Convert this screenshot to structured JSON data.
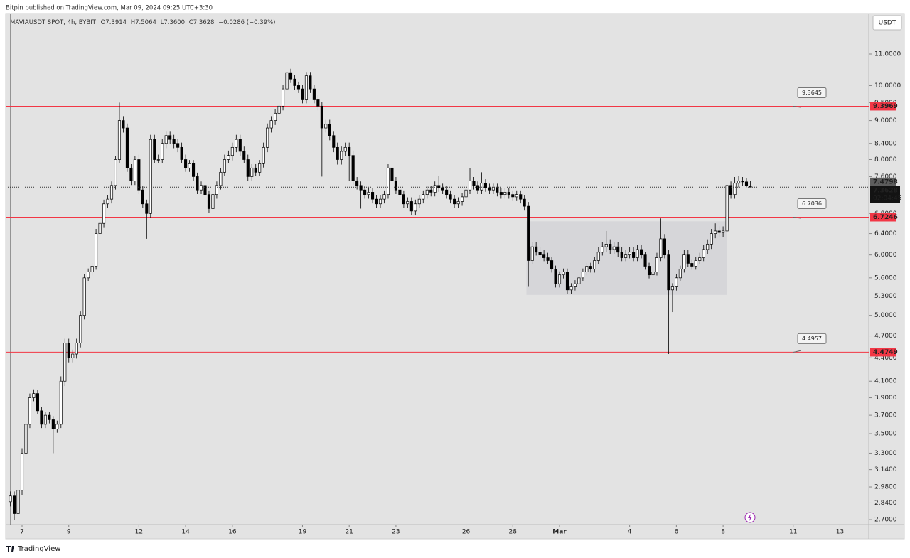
{
  "header": {
    "publisher": "Bitpin published on TradingView.com, Mar 09, 2024 09:25 UTC+3:30"
  },
  "chart_data": {
    "type": "candlestick",
    "symbol": "MAVIAUSDT SPOT, 4h, BYBIT",
    "ohlc_legend": [
      "O7.3914",
      "H7.5064",
      "L7.3600",
      "C7.3628",
      "−0.0286 (−0.39%)"
    ],
    "currency": "USDT",
    "log_scale": true,
    "up_color": "#ffffff",
    "down_color": "#000000",
    "xlim": [
      -4.2,
      217.4
    ],
    "xticks": [
      {
        "value": 0,
        "label": "7"
      },
      {
        "value": 12,
        "label": "9"
      },
      {
        "value": 30,
        "label": "12"
      },
      {
        "value": 42,
        "label": "14"
      },
      {
        "value": 54,
        "label": "16"
      },
      {
        "value": 72,
        "label": "19"
      },
      {
        "value": 84,
        "label": "21"
      },
      {
        "value": 96,
        "label": "23"
      },
      {
        "value": 114,
        "label": "26"
      },
      {
        "value": 126,
        "label": "28"
      },
      {
        "value": 138,
        "label": "Mar"
      },
      {
        "value": 156,
        "label": "4"
      },
      {
        "value": 168,
        "label": "6"
      },
      {
        "value": 180,
        "label": "8"
      },
      {
        "value": 198,
        "label": "11"
      },
      {
        "value": 210,
        "label": "13"
      }
    ],
    "ylim": [
      2.66,
      12.43
    ],
    "yticks": [
      {
        "value": 11,
        "label": "11.0000"
      },
      {
        "value": 10,
        "label": "10.0000"
      },
      {
        "value": 9.5,
        "label": "9.5000"
      },
      {
        "value": 9,
        "label": "9.0000"
      },
      {
        "value": 8.4,
        "label": "8.4000"
      },
      {
        "value": 8,
        "label": "8.0000"
      },
      {
        "value": 7.6,
        "label": "7.6000"
      },
      {
        "value": 6.8,
        "label": "6.8000"
      },
      {
        "value": 6.4,
        "label": "6.4000"
      },
      {
        "value": 6,
        "label": "6.0000"
      },
      {
        "value": 5.6,
        "label": "5.6000"
      },
      {
        "value": 5.3,
        "label": "5.3000"
      },
      {
        "value": 5,
        "label": "5.0000"
      },
      {
        "value": 4.7,
        "label": "4.7000"
      },
      {
        "value": 4.4,
        "label": "4.4000"
      },
      {
        "value": 4.1,
        "label": "4.1000"
      },
      {
        "value": 3.9,
        "label": "3.9000"
      },
      {
        "value": 3.7,
        "label": "3.7000"
      },
      {
        "value": 3.5,
        "label": "3.5000"
      },
      {
        "value": 3.3,
        "label": "3.3000"
      },
      {
        "value": 3.14,
        "label": "3.1400"
      },
      {
        "value": 2.98,
        "label": "2.9800"
      },
      {
        "value": 2.84,
        "label": "2.8400"
      },
      {
        "value": 2.7,
        "label": "2.7000"
      }
    ],
    "levels": [
      {
        "value": 9.3969,
        "callout": 9.3645
      },
      {
        "value": 6.7246,
        "callout": 6.7036
      },
      {
        "value": 4.4749,
        "callout": 4.4957
      }
    ],
    "level_color": "#f23645",
    "marker_price": 7.4798,
    "last_price": 7.3628,
    "countdown": "02:04:45",
    "box": {
      "x": [
        129.5,
        181
      ],
      "y": [
        5.32,
        6.64
      ]
    },
    "x": [
      -3,
      -2,
      -1,
      0,
      1,
      2,
      3,
      4,
      5,
      6,
      7,
      8,
      9,
      10,
      11,
      12,
      13,
      14,
      15,
      16,
      17,
      18,
      19,
      20,
      21,
      22,
      23,
      24,
      25,
      26,
      27,
      28,
      29,
      30,
      31,
      32,
      33,
      34,
      35,
      36,
      37,
      38,
      39,
      40,
      41,
      42,
      43,
      44,
      45,
      46,
      47,
      48,
      49,
      50,
      51,
      52,
      53,
      54,
      55,
      56,
      57,
      58,
      59,
      60,
      61,
      62,
      63,
      64,
      65,
      66,
      67,
      68,
      69,
      70,
      71,
      72,
      73,
      74,
      75,
      76,
      77,
      78,
      79,
      80,
      81,
      82,
      83,
      84,
      85,
      86,
      87,
      88,
      89,
      90,
      91,
      92,
      93,
      94,
      95,
      96,
      97,
      98,
      99,
      100,
      101,
      102,
      103,
      104,
      105,
      106,
      107,
      108,
      109,
      110,
      111,
      112,
      113,
      114,
      115,
      116,
      117,
      118,
      119,
      120,
      121,
      122,
      123,
      124,
      125,
      126,
      127,
      128,
      129,
      130,
      131,
      132,
      133,
      134,
      135,
      136,
      137,
      138,
      139,
      140,
      141,
      142,
      143,
      144,
      145,
      146,
      147,
      148,
      149,
      150,
      151,
      152,
      153,
      154,
      155,
      156,
      157,
      158,
      159,
      160,
      161,
      162,
      163,
      164,
      165,
      166,
      167,
      168,
      169,
      170,
      171,
      172,
      173,
      174,
      175,
      176,
      177,
      178,
      179,
      180,
      181,
      182,
      183,
      184,
      185,
      186,
      187
    ],
    "ohlc": [
      [
        2.85,
        2.94,
        2.81,
        2.9
      ],
      [
        2.9,
        2.94,
        2.7,
        2.75
      ],
      [
        2.75,
        3.0,
        2.72,
        2.95
      ],
      [
        2.95,
        3.35,
        2.91,
        3.3
      ],
      [
        3.3,
        3.65,
        3.26,
        3.6
      ],
      [
        3.6,
        3.95,
        3.56,
        3.9
      ],
      [
        3.9,
        4.0,
        3.86,
        3.95
      ],
      [
        3.95,
        3.99,
        3.71,
        3.75
      ],
      [
        3.75,
        3.79,
        3.56,
        3.6
      ],
      [
        3.6,
        3.74,
        3.56,
        3.7
      ],
      [
        3.7,
        3.74,
        3.61,
        3.65
      ],
      [
        3.65,
        3.69,
        3.3,
        3.55
      ],
      [
        3.55,
        3.64,
        3.51,
        3.6
      ],
      [
        3.6,
        4.16,
        3.56,
        4.1
      ],
      [
        4.1,
        4.66,
        4.04,
        4.6
      ],
      [
        4.6,
        4.66,
        4.34,
        4.4
      ],
      [
        4.4,
        4.51,
        4.34,
        4.45
      ],
      [
        4.45,
        4.66,
        4.39,
        4.6
      ],
      [
        4.6,
        5.06,
        4.54,
        5.0
      ],
      [
        5.0,
        5.66,
        4.94,
        5.6
      ],
      [
        5.6,
        5.76,
        5.54,
        5.7
      ],
      [
        5.7,
        5.86,
        5.64,
        5.8
      ],
      [
        5.8,
        6.49,
        5.74,
        6.4
      ],
      [
        6.4,
        6.69,
        6.31,
        6.6
      ],
      [
        6.6,
        7.09,
        6.51,
        7.0
      ],
      [
        7.0,
        7.19,
        6.91,
        7.1
      ],
      [
        7.1,
        7.49,
        7.01,
        7.4
      ],
      [
        7.4,
        8.09,
        7.31,
        8.0
      ],
      [
        8.0,
        9.5,
        7.91,
        9.0
      ],
      [
        9.0,
        9.12,
        8.68,
        8.8
      ],
      [
        8.8,
        8.92,
        7.71,
        7.8
      ],
      [
        7.8,
        7.89,
        7.41,
        7.5
      ],
      [
        7.5,
        8.09,
        7.41,
        8.0
      ],
      [
        8.0,
        8.12,
        7.21,
        7.3
      ],
      [
        7.3,
        7.39,
        6.91,
        7.0
      ],
      [
        7.0,
        7.09,
        6.3,
        6.8
      ],
      [
        6.8,
        8.62,
        6.71,
        8.5
      ],
      [
        8.5,
        8.62,
        7.91,
        8.0
      ],
      [
        8.0,
        8.12,
        7.91,
        8.0
      ],
      [
        8.0,
        8.52,
        7.91,
        8.4
      ],
      [
        8.4,
        8.72,
        8.28,
        8.6
      ],
      [
        8.6,
        8.72,
        8.38,
        8.5
      ],
      [
        8.5,
        8.62,
        8.28,
        8.4
      ],
      [
        8.4,
        8.52,
        8.18,
        8.3
      ],
      [
        8.3,
        8.42,
        7.91,
        8.0
      ],
      [
        8.0,
        8.12,
        7.71,
        7.8
      ],
      [
        7.8,
        7.99,
        7.71,
        7.9
      ],
      [
        7.9,
        7.99,
        7.51,
        7.6
      ],
      [
        7.6,
        7.69,
        7.21,
        7.3
      ],
      [
        7.3,
        7.49,
        7.21,
        7.4
      ],
      [
        7.4,
        7.49,
        7.11,
        7.2
      ],
      [
        7.2,
        7.29,
        6.81,
        6.9
      ],
      [
        6.9,
        7.29,
        6.81,
        7.2
      ],
      [
        7.2,
        7.49,
        7.11,
        7.4
      ],
      [
        7.4,
        7.79,
        7.31,
        7.7
      ],
      [
        7.7,
        8.12,
        7.61,
        8.0
      ],
      [
        8.0,
        8.22,
        7.91,
        8.1
      ],
      [
        8.1,
        8.42,
        7.98,
        8.3
      ],
      [
        8.3,
        8.62,
        8.18,
        8.5
      ],
      [
        8.5,
        8.62,
        8.08,
        8.2
      ],
      [
        8.2,
        8.32,
        7.91,
        8.0
      ],
      [
        8.0,
        8.12,
        7.51,
        7.6
      ],
      [
        7.6,
        7.89,
        7.51,
        7.8
      ],
      [
        7.8,
        7.89,
        7.61,
        7.7
      ],
      [
        7.7,
        7.99,
        7.61,
        7.9
      ],
      [
        7.9,
        8.42,
        7.81,
        8.3
      ],
      [
        8.3,
        8.92,
        8.18,
        8.8
      ],
      [
        8.8,
        9.12,
        8.68,
        9.0
      ],
      [
        9.0,
        9.32,
        8.88,
        9.2
      ],
      [
        9.2,
        9.52,
        9.08,
        9.4
      ],
      [
        9.4,
        10.02,
        9.28,
        9.9
      ],
      [
        9.9,
        10.8,
        9.78,
        10.4
      ],
      [
        10.4,
        10.52,
        10.08,
        10.2
      ],
      [
        10.2,
        10.32,
        9.88,
        10.0
      ],
      [
        10.0,
        10.12,
        9.78,
        9.9
      ],
      [
        9.9,
        10.02,
        9.48,
        9.6
      ],
      [
        9.6,
        10.42,
        9.48,
        10.3
      ],
      [
        10.3,
        10.42,
        9.78,
        9.9
      ],
      [
        9.9,
        10.02,
        9.48,
        9.6
      ],
      [
        9.6,
        9.72,
        9.28,
        9.4
      ],
      [
        9.4,
        9.52,
        7.6,
        8.8
      ],
      [
        8.8,
        9.02,
        8.68,
        8.9
      ],
      [
        8.9,
        9.02,
        8.48,
        8.6
      ],
      [
        8.6,
        8.72,
        8.18,
        8.3
      ],
      [
        8.3,
        8.42,
        7.88,
        8.0
      ],
      [
        8.0,
        8.32,
        7.88,
        8.2
      ],
      [
        8.2,
        8.42,
        8.08,
        8.3
      ],
      [
        8.3,
        8.42,
        7.5,
        8.1
      ],
      [
        8.1,
        8.22,
        7.41,
        7.5
      ],
      [
        7.5,
        7.59,
        7.31,
        7.4
      ],
      [
        7.4,
        7.49,
        6.9,
        7.3
      ],
      [
        7.3,
        7.39,
        7.11,
        7.2
      ],
      [
        7.2,
        7.34,
        7.11,
        7.25
      ],
      [
        7.25,
        7.34,
        7.01,
        7.1
      ],
      [
        7.1,
        7.19,
        6.91,
        7.0
      ],
      [
        7.0,
        7.19,
        6.91,
        7.1
      ],
      [
        7.1,
        7.29,
        7.01,
        7.2
      ],
      [
        7.2,
        7.89,
        7.11,
        7.8
      ],
      [
        7.8,
        7.89,
        7.41,
        7.5
      ],
      [
        7.5,
        7.59,
        7.21,
        7.3
      ],
      [
        7.3,
        7.39,
        7.11,
        7.2
      ],
      [
        7.2,
        7.29,
        6.91,
        7.0
      ],
      [
        7.0,
        7.14,
        6.91,
        7.05
      ],
      [
        7.05,
        7.14,
        6.76,
        6.85
      ],
      [
        6.85,
        7.09,
        6.76,
        7.0
      ],
      [
        7.0,
        7.19,
        6.91,
        7.1
      ],
      [
        7.1,
        7.29,
        7.01,
        7.2
      ],
      [
        7.2,
        7.39,
        7.11,
        7.3
      ],
      [
        7.3,
        7.39,
        7.16,
        7.25
      ],
      [
        7.25,
        7.49,
        7.16,
        7.4
      ],
      [
        7.4,
        7.62,
        7.26,
        7.35
      ],
      [
        7.35,
        7.44,
        7.21,
        7.3
      ],
      [
        7.3,
        7.39,
        7.11,
        7.2
      ],
      [
        7.2,
        7.29,
        7.01,
        7.1
      ],
      [
        7.1,
        7.19,
        6.91,
        7.0
      ],
      [
        7.0,
        7.14,
        6.91,
        7.05
      ],
      [
        7.05,
        7.24,
        6.96,
        7.15
      ],
      [
        7.15,
        7.39,
        7.06,
        7.3
      ],
      [
        7.3,
        7.8,
        7.21,
        7.5
      ],
      [
        7.5,
        7.59,
        7.31,
        7.4
      ],
      [
        7.4,
        7.49,
        7.21,
        7.3
      ],
      [
        7.3,
        7.7,
        7.21,
        7.45
      ],
      [
        7.45,
        7.54,
        7.26,
        7.35
      ],
      [
        7.35,
        7.44,
        7.21,
        7.3
      ],
      [
        7.3,
        7.44,
        7.21,
        7.35
      ],
      [
        7.35,
        7.44,
        7.16,
        7.25
      ],
      [
        7.25,
        7.34,
        7.11,
        7.2
      ],
      [
        7.2,
        7.34,
        7.11,
        7.25
      ],
      [
        7.25,
        7.34,
        7.11,
        7.2
      ],
      [
        7.2,
        7.29,
        7.06,
        7.15
      ],
      [
        7.15,
        7.29,
        7.06,
        7.2
      ],
      [
        7.2,
        7.29,
        7.01,
        7.1
      ],
      [
        7.1,
        7.19,
        6.86,
        6.95
      ],
      [
        6.95,
        7.04,
        5.45,
        5.9
      ],
      [
        5.9,
        6.24,
        5.84,
        6.15
      ],
      [
        6.15,
        6.24,
        5.99,
        6.05
      ],
      [
        6.05,
        6.14,
        5.94,
        6.0
      ],
      [
        6.0,
        6.09,
        5.89,
        5.95
      ],
      [
        5.95,
        6.04,
        5.84,
        5.9
      ],
      [
        5.9,
        5.96,
        5.69,
        5.75
      ],
      [
        5.75,
        5.81,
        5.44,
        5.5
      ],
      [
        5.5,
        5.71,
        5.44,
        5.65
      ],
      [
        5.65,
        5.76,
        5.59,
        5.7
      ],
      [
        5.7,
        5.76,
        5.34,
        5.4
      ],
      [
        5.4,
        5.51,
        5.34,
        5.45
      ],
      [
        5.45,
        5.56,
        5.39,
        5.5
      ],
      [
        5.5,
        5.66,
        5.44,
        5.6
      ],
      [
        5.6,
        5.76,
        5.54,
        5.7
      ],
      [
        5.7,
        5.86,
        5.64,
        5.8
      ],
      [
        5.8,
        5.86,
        5.69,
        5.75
      ],
      [
        5.75,
        5.96,
        5.69,
        5.9
      ],
      [
        5.9,
        6.14,
        5.84,
        6.05
      ],
      [
        6.05,
        6.24,
        5.99,
        6.15
      ],
      [
        6.15,
        6.45,
        6.06,
        6.2
      ],
      [
        6.2,
        6.29,
        6.01,
        6.1
      ],
      [
        6.1,
        6.24,
        6.01,
        6.15
      ],
      [
        6.15,
        6.24,
        5.96,
        6.05
      ],
      [
        6.05,
        6.14,
        5.89,
        5.95
      ],
      [
        5.95,
        6.09,
        5.89,
        6.0
      ],
      [
        6.0,
        6.14,
        5.94,
        6.05
      ],
      [
        6.05,
        6.14,
        5.89,
        5.95
      ],
      [
        5.95,
        6.19,
        5.89,
        6.1
      ],
      [
        6.1,
        6.19,
        5.94,
        6.0
      ],
      [
        6.0,
        6.06,
        5.74,
        5.8
      ],
      [
        5.8,
        5.86,
        5.59,
        5.65
      ],
      [
        5.65,
        5.76,
        5.59,
        5.7
      ],
      [
        5.7,
        6.04,
        5.64,
        5.95
      ],
      [
        5.95,
        6.7,
        5.89,
        6.3
      ],
      [
        6.3,
        6.39,
        5.94,
        6.0
      ],
      [
        6.0,
        6.09,
        4.45,
        5.4
      ],
      [
        5.4,
        5.51,
        5.05,
        5.45
      ],
      [
        5.45,
        5.66,
        5.39,
        5.6
      ],
      [
        5.6,
        5.81,
        5.54,
        5.75
      ],
      [
        5.75,
        6.09,
        5.69,
        6.0
      ],
      [
        6.0,
        6.09,
        5.79,
        5.85
      ],
      [
        5.85,
        5.91,
        5.74,
        5.8
      ],
      [
        5.8,
        5.96,
        5.74,
        5.9
      ],
      [
        5.9,
        6.04,
        5.84,
        5.95
      ],
      [
        5.95,
        6.19,
        5.89,
        6.1
      ],
      [
        6.1,
        6.29,
        6.01,
        6.2
      ],
      [
        6.2,
        6.49,
        6.11,
        6.4
      ],
      [
        6.4,
        6.6,
        6.31,
        6.45
      ],
      [
        6.45,
        6.54,
        6.33,
        6.42
      ],
      [
        6.42,
        6.54,
        6.33,
        6.45
      ],
      [
        6.45,
        8.1,
        6.36,
        7.4
      ],
      [
        7.4,
        7.49,
        7.11,
        7.2
      ],
      [
        7.2,
        7.59,
        7.11,
        7.45
      ],
      [
        7.45,
        7.62,
        7.36,
        7.5
      ],
      [
        7.5,
        7.59,
        7.39,
        7.48
      ],
      [
        7.48,
        7.57,
        7.36,
        7.39
      ],
      [
        7.3914,
        7.5064,
        7.36,
        7.3628
      ]
    ]
  },
  "footer": {
    "brand": "TradingView"
  }
}
